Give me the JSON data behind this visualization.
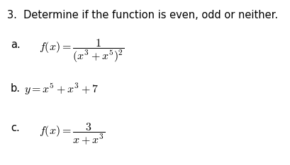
{
  "background_color": "#ffffff",
  "title_text": "3.  Determine if the function is even, odd or neither.",
  "title_fontsize": 10.5,
  "items": [
    {
      "label": "a.",
      "label_fontsize": 10.5,
      "math": "$\\mathit{f}(\\mathit{x})=\\dfrac{1}{(\\mathit{x}^3+\\mathit{x}^5)^2}$",
      "math_fontsize": 11.5
    },
    {
      "label": "b.",
      "label_fontsize": 10.5,
      "math": "$\\mathit{y}=\\mathit{x}^5+\\mathit{x}^3+7$",
      "math_fontsize": 11.5
    },
    {
      "label": "c.",
      "label_fontsize": 10.5,
      "math": "$\\mathit{f}(\\mathit{x})=\\dfrac{3}{\\mathit{x}+\\mathit{x}^3}$",
      "math_fontsize": 11.5
    }
  ]
}
